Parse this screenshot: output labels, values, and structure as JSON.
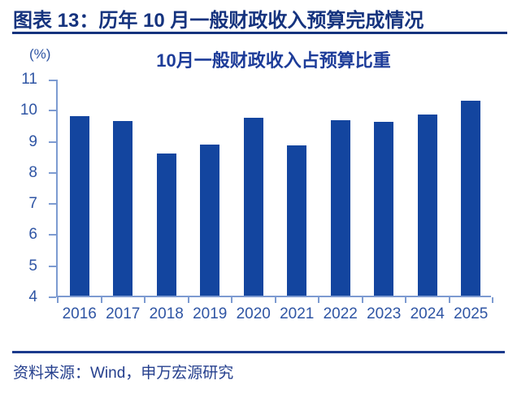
{
  "header": {
    "title": "图表 13：历年 10 月一般财政收入预算完成情况"
  },
  "chart": {
    "unit": "(%)",
    "title": "10月一般财政收入占预算比重"
  },
  "footer": {
    "source": "资料来源：Wind，申万宏源研究"
  },
  "colors": {
    "bar": "#13459F",
    "axis": "#7D9BD1",
    "tick_label": "#2F55A4",
    "title": "#1D3C99",
    "header": "#15337E",
    "rule": "#1B3A8C",
    "source": "#26408E",
    "bg": "#FFFFFF"
  },
  "chart_data": {
    "type": "bar",
    "title": "10月一般财政收入占预算比重",
    "categories": [
      "2016",
      "2017",
      "2018",
      "2019",
      "2020",
      "2021",
      "2022",
      "2023",
      "2024",
      "2025"
    ],
    "values": [
      9.77,
      9.62,
      8.57,
      8.86,
      9.72,
      8.84,
      9.64,
      9.58,
      9.82,
      10.28
    ],
    "xlabel": "",
    "ylabel": "(%)",
    "ylim": [
      4,
      11
    ],
    "yticks": [
      4,
      5,
      6,
      7,
      8,
      9,
      10,
      11
    ],
    "grid": false,
    "legend": false,
    "bar_color": "#13459F"
  }
}
